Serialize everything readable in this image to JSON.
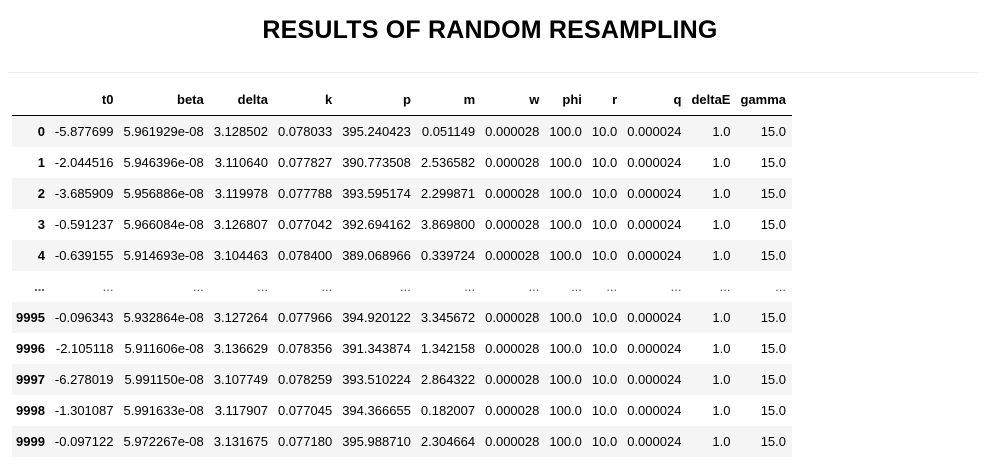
{
  "title": "RESULTS OF RANDOM RESAMPLING",
  "table": {
    "columns": [
      "t0",
      "beta",
      "delta",
      "k",
      "p",
      "m",
      "w",
      "phi",
      "r",
      "q",
      "deltaE",
      "gamma"
    ],
    "rows": [
      {
        "index": "0",
        "cells": [
          "-5.877699",
          "5.961929e-08",
          "3.128502",
          "0.078033",
          "395.240423",
          "0.051149",
          "0.000028",
          "100.0",
          "10.0",
          "0.000024",
          "1.0",
          "15.0"
        ]
      },
      {
        "index": "1",
        "cells": [
          "-2.044516",
          "5.946396e-08",
          "3.110640",
          "0.077827",
          "390.773508",
          "2.536582",
          "0.000028",
          "100.0",
          "10.0",
          "0.000024",
          "1.0",
          "15.0"
        ]
      },
      {
        "index": "2",
        "cells": [
          "-3.685909",
          "5.956886e-08",
          "3.119978",
          "0.077788",
          "393.595174",
          "2.299871",
          "0.000028",
          "100.0",
          "10.0",
          "0.000024",
          "1.0",
          "15.0"
        ]
      },
      {
        "index": "3",
        "cells": [
          "-0.591237",
          "5.966084e-08",
          "3.126807",
          "0.077042",
          "392.694162",
          "3.869800",
          "0.000028",
          "100.0",
          "10.0",
          "0.000024",
          "1.0",
          "15.0"
        ]
      },
      {
        "index": "4",
        "cells": [
          "-0.639155",
          "5.914693e-08",
          "3.104463",
          "0.078400",
          "389.068966",
          "0.339724",
          "0.000028",
          "100.0",
          "10.0",
          "0.000024",
          "1.0",
          "15.0"
        ]
      },
      {
        "index": "...",
        "cells": [
          "...",
          "...",
          "...",
          "...",
          "...",
          "...",
          "...",
          "...",
          "...",
          "...",
          "...",
          "..."
        ]
      },
      {
        "index": "9995",
        "cells": [
          "-0.096343",
          "5.932864e-08",
          "3.127264",
          "0.077966",
          "394.920122",
          "3.345672",
          "0.000028",
          "100.0",
          "10.0",
          "0.000024",
          "1.0",
          "15.0"
        ]
      },
      {
        "index": "9996",
        "cells": [
          "-2.105118",
          "5.911606e-08",
          "3.136629",
          "0.078356",
          "391.343874",
          "1.342158",
          "0.000028",
          "100.0",
          "10.0",
          "0.000024",
          "1.0",
          "15.0"
        ]
      },
      {
        "index": "9997",
        "cells": [
          "-6.278019",
          "5.991150e-08",
          "3.107749",
          "0.078259",
          "393.510224",
          "2.864322",
          "0.000028",
          "100.0",
          "10.0",
          "0.000024",
          "1.0",
          "15.0"
        ]
      },
      {
        "index": "9998",
        "cells": [
          "-1.301087",
          "5.991633e-08",
          "3.117907",
          "0.077045",
          "394.366655",
          "0.182007",
          "0.000028",
          "100.0",
          "10.0",
          "0.000024",
          "1.0",
          "15.0"
        ]
      },
      {
        "index": "9999",
        "cells": [
          "-0.097122",
          "5.972267e-08",
          "3.131675",
          "0.077180",
          "395.988710",
          "2.304664",
          "0.000028",
          "100.0",
          "10.0",
          "0.000024",
          "1.0",
          "15.0"
        ]
      }
    ]
  }
}
